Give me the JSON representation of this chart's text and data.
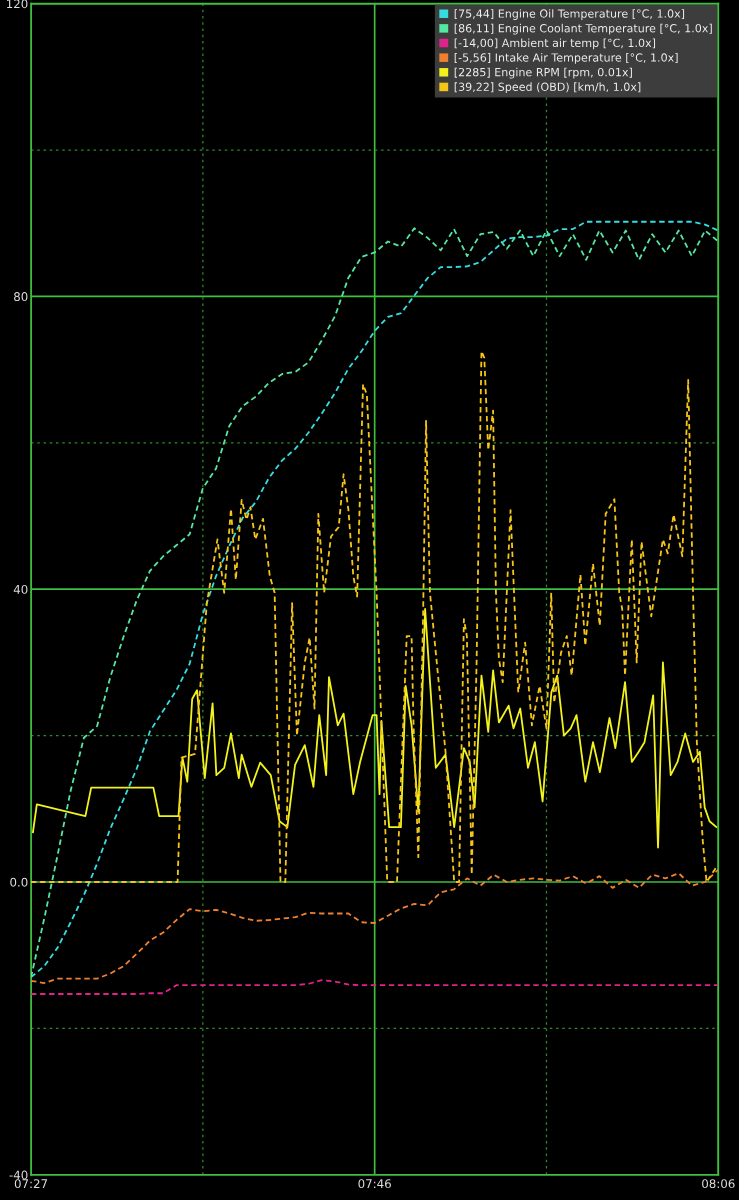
{
  "chart_data": {
    "type": "line",
    "line_style": "dashed",
    "grid": true,
    "legend": "top right",
    "xlim": [
      7.45,
      8.1
    ],
    "ylim": [
      -40,
      120
    ],
    "xticks": [
      {
        "value": 7.45,
        "label": "07:27"
      },
      {
        "value": 7.6125,
        "label": null
      },
      {
        "value": 7.775,
        "label": "07:46"
      },
      {
        "value": 7.9375,
        "label": null
      },
      {
        "value": 8.1,
        "label": "08:06"
      }
    ],
    "yticks": [
      -40,
      {
        "value": -20,
        "label": null
      },
      {
        "value": 0,
        "label": "0.0"
      },
      {
        "value": 20,
        "label": null
      },
      40,
      {
        "value": 60,
        "label": null
      },
      80,
      {
        "value": 100,
        "label": null
      },
      120
    ],
    "x": [
      7.45,
      7.4625,
      7.475,
      7.4875,
      7.5,
      7.5125,
      7.525,
      7.5375,
      7.55,
      7.5625,
      7.575,
      7.5875,
      7.6,
      7.6125,
      7.625,
      7.6375,
      7.65,
      7.6625,
      7.675,
      7.6875,
      7.7,
      7.7125,
      7.725,
      7.7375,
      7.75,
      7.7625,
      7.775,
      7.7875,
      7.8,
      7.8125,
      7.825,
      7.8375,
      7.85,
      7.8625,
      7.875,
      7.8875,
      7.9,
      7.9125,
      7.925,
      7.9375,
      7.95,
      7.9625,
      7.975,
      7.9875,
      8.0,
      8.0125,
      8.025,
      8.0375,
      8.05,
      8.0625,
      8.075,
      8.0875,
      8.1
    ],
    "series": [
      {
        "name": "[75,44] Engine Oil Temperature [°C, 1.0x]",
        "color": "#33dde0",
        "values": [
          -13,
          -11.5,
          -9,
          -5.5,
          -1.8,
          2.5,
          7.3,
          11.3,
          15.5,
          20.6,
          23.4,
          26.2,
          29.8,
          36.6,
          41.8,
          45.9,
          49.7,
          51.9,
          55.2,
          57.6,
          59.2,
          61.4,
          64,
          66.8,
          70.1,
          72.5,
          75.3,
          77.2,
          77.7,
          80.1,
          82.5,
          84,
          84,
          84.1,
          84.7,
          86.3,
          87.9,
          88.1,
          88.1,
          88.3,
          89.2,
          89.2,
          90.2,
          90.2,
          90.2,
          90.2,
          90.2,
          90.2,
          90.2,
          90.2,
          90.2,
          89.8,
          89
        ]
      },
      {
        "name": "[86,11] Engine Coolant Temperature [°C, 1.0x]",
        "color": "#55e6a0",
        "values": [
          -13,
          -5,
          3.6,
          12.5,
          19.7,
          21.3,
          28,
          33.5,
          38.5,
          42.5,
          44.5,
          46,
          47.5,
          53.8,
          56.5,
          62.3,
          65,
          66.3,
          68.2,
          69.4,
          69.7,
          71,
          74,
          77.3,
          82.5,
          85.4,
          86,
          87.5,
          86.8,
          89.3,
          88,
          86.3,
          89.2,
          85.5,
          88.5,
          88.8,
          86.5,
          89,
          85.5,
          89,
          85.5,
          88.5,
          85,
          89,
          86,
          89,
          85,
          88.5,
          86,
          89,
          85.5,
          89,
          87.5
        ]
      },
      {
        "name": "[-14,00] Ambient air temp [°C, 1.0x]",
        "color": "#e0238c",
        "values": [
          -15.3,
          -15.3,
          -15.3,
          -15.3,
          -15.3,
          -15.3,
          -15.3,
          -15.3,
          -15.3,
          -15.2,
          -15.2,
          -14.1,
          -14.1,
          -14.1,
          -14.1,
          -14.1,
          -14.1,
          -14.1,
          -14.1,
          -14.1,
          -14.1,
          -13.9,
          -13.4,
          -13.6,
          -14,
          -14.1,
          -14.1,
          -14.1,
          -14.1,
          -14.1,
          -14.1,
          -14.1,
          -14.1,
          -14.1,
          -14.1,
          -14.1,
          -14.1,
          -14.1,
          -14.1,
          -14.1,
          -14.1,
          -14.1,
          -14.1,
          -14.1,
          -14.1,
          -14.1,
          -14.1,
          -14.1,
          -14.1,
          -14.1,
          -14.1,
          -14.1,
          -14.1
        ]
      },
      {
        "name": "[-5,56] Intake Air Temperature [°C, 1.0x]",
        "color": "#f08030",
        "values": [
          -13.5,
          -13.8,
          -13.2,
          -13.2,
          -13.2,
          -13.2,
          -12.5,
          -11.5,
          -9.8,
          -8,
          -6.9,
          -5.2,
          -3.7,
          -4,
          -3.8,
          -4.3,
          -4.9,
          -5.3,
          -5.2,
          -5,
          -4.8,
          -4.2,
          -4.3,
          -4.3,
          -4.3,
          -5.5,
          -5.6,
          -4.6,
          -3.6,
          -3,
          -3.2,
          -1.4,
          -1,
          0.5,
          -0.5,
          1,
          0,
          0.3,
          0.5,
          0.3,
          0.2,
          0.8,
          -0.2,
          0.8,
          -0.8,
          0.3,
          -0.8,
          1,
          0.5,
          1.2,
          -0.5,
          0,
          1.7
        ]
      },
      {
        "name": "[2285] Engine RPM [rpm, 0.01x]",
        "color": "#f2f21c",
        "line_style": "solid",
        "x": [
          7.4518,
          7.4555,
          7.5014,
          7.5069,
          7.5657,
          7.5712,
          7.5895,
          7.5932,
          7.5978,
          7.6024,
          7.607,
          7.6143,
          7.6217,
          7.6253,
          7.6327,
          7.6391,
          7.6465,
          7.6492,
          7.6584,
          7.6667,
          7.6767,
          7.685,
          7.6924,
          7.6997,
          7.7089,
          7.7171,
          7.7226,
          7.7291,
          7.7318,
          7.7401,
          7.7456,
          7.7548,
          7.7612,
          7.7731,
          7.7768,
          7.7796,
          7.7814,
          7.7887,
          7.7998,
          7.8043,
          7.8099,
          7.8163,
          7.8227,
          7.8328,
          7.842,
          7.8502,
          7.8594,
          7.8649,
          7.8695,
          7.876,
          7.8824,
          7.887,
          7.8925,
          7.9017,
          7.9063,
          7.9127,
          7.92,
          7.9265,
          7.9338,
          7.9421,
          7.9476,
          7.954,
          7.9604,
          7.9659,
          7.9742,
          7.9815,
          7.988,
          7.9971,
          8.0026,
          8.0118,
          8.0182,
          8.0247,
          8.0302,
          8.0384,
          8.043,
          8.0476,
          8.055,
          8.0614,
          8.0687,
          8.0761,
          8.0825,
          8.0871,
          8.0917,
          8.0981
        ],
        "values": [
          6.8,
          10.6,
          9,
          12.9,
          12.9,
          9,
          9,
          17,
          13.7,
          25,
          26.2,
          14.2,
          24.4,
          14.6,
          15.6,
          20.3,
          14.2,
          17.4,
          13,
          16.3,
          14.6,
          8.3,
          7.5,
          16,
          18.7,
          13,
          22.8,
          14.6,
          28,
          21.4,
          23,
          12,
          16.4,
          22.8,
          22.8,
          12,
          22,
          7.5,
          7.5,
          26.8,
          21.4,
          9.6,
          37.3,
          15.6,
          17.4,
          7.5,
          18.3,
          16.4,
          10.2,
          28.2,
          20.5,
          28.9,
          21.8,
          24.1,
          21,
          23.7,
          15.6,
          19.1,
          11,
          25.9,
          28.2,
          20,
          21,
          22.8,
          13.7,
          19.1,
          15,
          22.4,
          18.3,
          27.3,
          16.4,
          17.8,
          19.1,
          25.5,
          4.7,
          30,
          14.6,
          16.4,
          20.3,
          16.4,
          17.8,
          10.2,
          8.3,
          7.5
        ]
      },
      {
        "name": "[39,22] Speed (OBD) [km/h, 1.0x]",
        "color": "#f5c518",
        "x": [
          7.45,
          7.5886,
          7.5923,
          7.6051,
          7.6162,
          7.6263,
          7.6327,
          7.6391,
          7.6437,
          7.6492,
          7.6538,
          7.6575,
          7.6621,
          7.6694,
          7.6758,
          7.6804,
          7.6859,
          7.6905,
          7.6969,
          7.7015,
          7.7089,
          7.7135,
          7.7181,
          7.7217,
          7.7272,
          7.7337,
          7.741,
          7.7456,
          7.7502,
          7.7548,
          7.7584,
          7.764,
          7.7676,
          7.7731,
          7.7768,
          7.7869,
          7.7961,
          7.8053,
          7.8099,
          7.8117,
          7.8163,
          7.8209,
          7.8236,
          7.8273,
          7.8365,
          7.842,
          7.8502,
          7.8548,
          7.8594,
          7.8622,
          7.8668,
          7.8714,
          7.876,
          7.8787,
          7.8824,
          7.887,
          7.8897,
          7.8925,
          7.8961,
          7.9035,
          7.9108,
          7.9173,
          7.9237,
          7.931,
          7.9375,
          7.942,
          7.9448,
          7.9512,
          7.9567,
          7.9613,
          7.9696,
          7.9742,
          7.9815,
          7.9879,
          7.9935,
          8.0017,
          8.0063,
          8.0091,
          8.0118,
          8.0182,
          8.0228,
          8.0274,
          8.0366,
          8.0476,
          8.0522,
          8.0577,
          8.066,
          8.0715,
          8.0761,
          8.0797,
          8.0853,
          8.0889,
          8.0981
        ],
        "values": [
          0,
          0,
          17,
          17.5,
          38,
          46.8,
          39.5,
          51,
          41.3,
          52.2,
          49.5,
          51.2,
          46.8,
          49.6,
          41.8,
          39.5,
          0,
          0,
          38.1,
          20,
          30,
          33.4,
          23.7,
          50.3,
          39.5,
          47.2,
          48.5,
          55.7,
          50.8,
          41.8,
          39,
          68,
          66.6,
          50.3,
          39.5,
          0,
          0,
          33.6,
          33.6,
          21.8,
          3.4,
          37.3,
          63,
          39.5,
          25.9,
          17.8,
          0,
          0,
          35.9,
          33.6,
          1,
          30,
          72.5,
          71.6,
          59,
          64.4,
          39.5,
          30.5,
          27.3,
          50.8,
          25.9,
          32.7,
          21.4,
          26.8,
          21,
          39.5,
          24.5,
          31.3,
          33.6,
          28.2,
          42,
          32.3,
          43.5,
          35,
          50.3,
          52.3,
          39.5,
          37.3,
          28.2,
          46.8,
          30,
          46.5,
          36.3,
          46.8,
          44.9,
          50.2,
          44.5,
          68.6,
          39.5,
          19.1,
          5.6,
          0,
          2
        ]
      }
    ]
  }
}
